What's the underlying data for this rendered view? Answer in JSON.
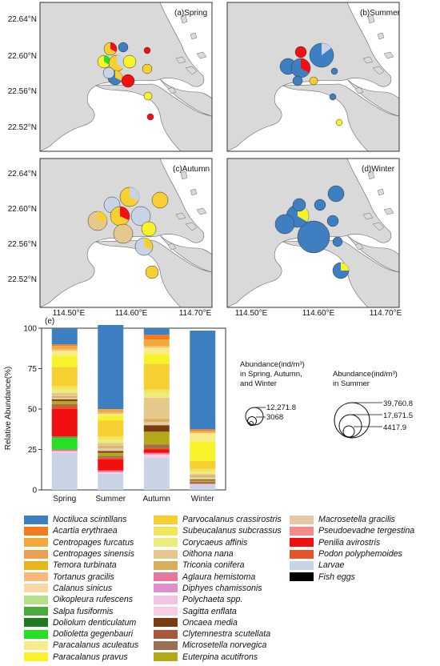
{
  "maps": {
    "panels": [
      {
        "label": "(a)Spring",
        "season": "Spring"
      },
      {
        "label": "(b)Summer",
        "season": "Summer"
      },
      {
        "label": "(c)Autumn",
        "season": "Autumn"
      },
      {
        "label": "(d)Winter",
        "season": "Winter"
      }
    ],
    "y_ticks": [
      "22.64°N",
      "22.60°N",
      "22.56°N",
      "22.52°N"
    ],
    "x_ticks": [
      "114.50°E",
      "114.60°E",
      "114.70°E"
    ]
  },
  "size_legend": {
    "left_title_1": "Abundance(ind/m³)",
    "left_title_2": "in Spring, Autumn,",
    "left_title_3": "and Winter",
    "left_values": [
      "12,271.8",
      "3068"
    ],
    "right_title_1": "Abundance(ind/m³)",
    "right_title_2": "in Summer",
    "right_values": [
      "39,760.8",
      "17,671.5",
      "4417.9"
    ]
  },
  "species_legend": [
    {
      "name": "Noctiluca scintillans",
      "color": "#3d7fc0"
    },
    {
      "name": "Acartia erythraea",
      "color": "#f47c20"
    },
    {
      "name": "Centropages furcatus",
      "color": "#f4a83a"
    },
    {
      "name": "Centropages sinensis",
      "color": "#eca052"
    },
    {
      "name": "Temora turbinata",
      "color": "#e9b51c"
    },
    {
      "name": "Tortanus gracilis",
      "color": "#f9b97a"
    },
    {
      "name": "Calanus sinicus",
      "color": "#fad7a4"
    },
    {
      "name": "Oikopleura rufescens",
      "color": "#b5e08a"
    },
    {
      "name": "Salpa fusiformis",
      "color": "#4aab3c"
    },
    {
      "name": "Doliolum denticulatum",
      "color": "#1f7a1f"
    },
    {
      "name": "Dolioletta gegenbauri",
      "color": "#26e026"
    },
    {
      "name": "Paracalanus aculeatus",
      "color": "#f6ec8a"
    },
    {
      "name": "Paracalanus pravus",
      "color": "#f8f22a"
    },
    {
      "name": "Parvocalanus crassirostris",
      "color": "#f6cf32"
    },
    {
      "name": "Subeucalanus subcrassus",
      "color": "#f0e65a"
    },
    {
      "name": "Corycaeus affinis",
      "color": "#eaec7c"
    },
    {
      "name": "Oithona nana",
      "color": "#e6c78c"
    },
    {
      "name": "Triconia conifera",
      "color": "#d9ae5a"
    },
    {
      "name": "Aglaura hemistoma",
      "color": "#e5779c"
    },
    {
      "name": "Diphyes chamissonis",
      "color": "#de8fcc"
    },
    {
      "name": "Polychaeta spp.",
      "color": "#f2c4e4"
    },
    {
      "name": "Sagitta enflata",
      "color": "#f6cfe6"
    },
    {
      "name": "Oncaea media",
      "color": "#7a3b10"
    },
    {
      "name": "Clytemnestra scutellata",
      "color": "#a9573a"
    },
    {
      "name": "Microsetella norvegica",
      "color": "#9a7052"
    },
    {
      "name": "Euterpina acutifrons",
      "color": "#b2a81a"
    },
    {
      "name": "Macrosetella gracilis",
      "color": "#e4c9a6"
    },
    {
      "name": "Pseudoevadne tergestina",
      "color": "#f68a8a"
    },
    {
      "name": "Penilia avirostris",
      "color": "#f20f0f"
    },
    {
      "name": "Podon polyphemoides",
      "color": "#e8542a"
    },
    {
      "name": "Larvae",
      "color": "#c8d4e6"
    },
    {
      "name": "Fish eggs",
      "color": "#000000"
    }
  ],
  "chart_data": {
    "type": "bar",
    "stacked": true,
    "title": "(e)",
    "xlabel": "",
    "ylabel": "Relative Abundance(%)",
    "ylim": [
      0,
      100
    ],
    "y_ticks": [
      0,
      25,
      50,
      75,
      100
    ],
    "categories": [
      "Spring",
      "Summer",
      "Autumn",
      "Winter"
    ],
    "series": [
      {
        "color": "#c8d4e6",
        "values": [
          23,
          10,
          20,
          3
        ]
      },
      {
        "color": "#f6cfe6",
        "values": [
          1,
          1,
          2,
          0.5
        ]
      },
      {
        "color": "#e5779c",
        "values": [
          1,
          1,
          1,
          0.5
        ]
      },
      {
        "color": "#26e026",
        "values": [
          7,
          0,
          0,
          0
        ]
      },
      {
        "color": "#4aab3c",
        "values": [
          1,
          0,
          0,
          0
        ]
      },
      {
        "color": "#f20f0f",
        "values": [
          17,
          7,
          2,
          0
        ]
      },
      {
        "color": "#e8542a",
        "values": [
          2,
          1,
          1,
          0
        ]
      },
      {
        "color": "#9a7052",
        "values": [
          1,
          1,
          2,
          1
        ]
      },
      {
        "color": "#b2a81a",
        "values": [
          2,
          2,
          8,
          1
        ]
      },
      {
        "color": "#7a3b10",
        "values": [
          1,
          1,
          4,
          0.5
        ]
      },
      {
        "color": "#e4c9a6",
        "values": [
          1,
          2,
          2,
          1.5
        ]
      },
      {
        "color": "#d9ae5a",
        "values": [
          1,
          1,
          2,
          1
        ]
      },
      {
        "color": "#e6c78c",
        "values": [
          2,
          2,
          13,
          1
        ]
      },
      {
        "color": "#eaec7c",
        "values": [
          2,
          2,
          3,
          1
        ]
      },
      {
        "color": "#f0e65a",
        "values": [
          2,
          2,
          2,
          2
        ]
      },
      {
        "color": "#f6cf32",
        "values": [
          12,
          10,
          16,
          5
        ]
      },
      {
        "color": "#f8f22a",
        "values": [
          7,
          3,
          6,
          12
        ]
      },
      {
        "color": "#f6ec8a",
        "values": [
          3,
          1,
          4,
          5
        ]
      },
      {
        "color": "#f9b97a",
        "values": [
          1,
          1,
          1,
          0.5
        ]
      },
      {
        "color": "#f4a83a",
        "values": [
          2,
          2,
          4,
          1
        ]
      },
      {
        "color": "#f47c20",
        "values": [
          1,
          0,
          3,
          1
        ]
      },
      {
        "color": "#3d7fc0",
        "values": [
          10,
          52,
          4,
          61
        ]
      }
    ]
  }
}
